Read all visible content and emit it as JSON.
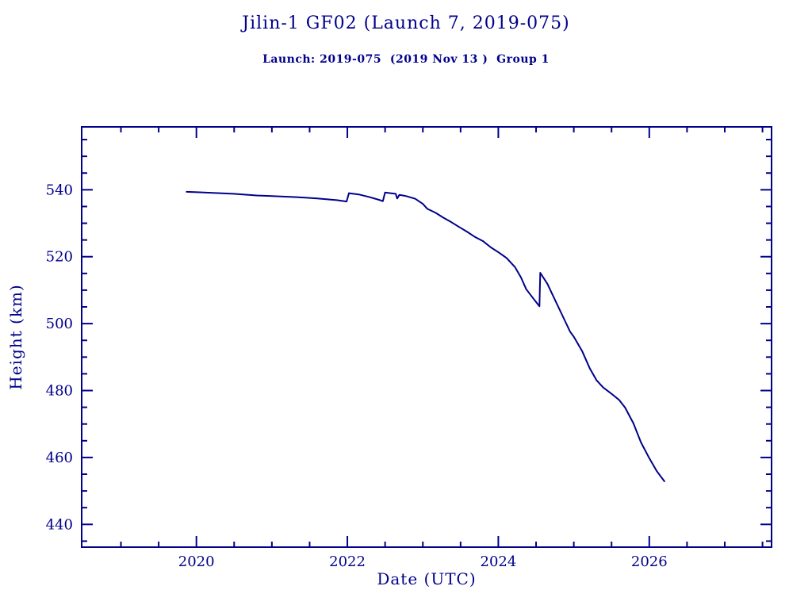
{
  "page": {
    "title": "Jilin-1 GF02 (Launch 7, 2019-075)",
    "subtitle": "Launch: 2019-075  (2019 Nov 13 )  Group 1"
  },
  "chart_data": {
    "type": "line",
    "title": "Jilin-1 GF02 (Launch 7, 2019-075)",
    "subtitle": "Launch: 2019-075  (2019 Nov 13 )  Group 1",
    "xlabel": "Date (UTC)",
    "ylabel": "Height (km)",
    "xlim": [
      2018.48,
      2027.62
    ],
    "ylim": [
      433.2,
      558.8
    ],
    "x_major_ticks": [
      2020,
      2022,
      2024,
      2026
    ],
    "x_major_tick_labels": [
      "2020",
      "2022",
      "2024",
      "2026"
    ],
    "x_minor_step": 0.5,
    "y_major_ticks": [
      440,
      460,
      480,
      500,
      520,
      540
    ],
    "y_major_tick_labels": [
      "440",
      "460",
      "480",
      "500",
      "520",
      "540"
    ],
    "y_minor_step": 5,
    "grid": false,
    "legend_position": "none",
    "ink_color": "#00008B",
    "line_color": "#00008B",
    "series": [
      {
        "name": "height-km-vs-date",
        "points": [
          [
            2019.87,
            539.4
          ],
          [
            2020.1,
            539.2
          ],
          [
            2020.49,
            538.8
          ],
          [
            2020.8,
            538.3
          ],
          [
            2021.0,
            538.1
          ],
          [
            2021.33,
            537.8
          ],
          [
            2021.6,
            537.4
          ],
          [
            2021.86,
            536.9
          ],
          [
            2021.99,
            536.5
          ],
          [
            2022.02,
            539.0
          ],
          [
            2022.15,
            538.6
          ],
          [
            2022.28,
            537.9
          ],
          [
            2022.42,
            537.0
          ],
          [
            2022.47,
            536.6
          ],
          [
            2022.5,
            539.2
          ],
          [
            2022.57,
            539.0
          ],
          [
            2022.64,
            538.8
          ],
          [
            2022.66,
            537.4
          ],
          [
            2022.69,
            538.5
          ],
          [
            2022.78,
            538.1
          ],
          [
            2022.9,
            537.3
          ],
          [
            2023.0,
            535.8
          ],
          [
            2023.06,
            534.3
          ],
          [
            2023.17,
            533.1
          ],
          [
            2023.27,
            531.7
          ],
          [
            2023.38,
            530.3
          ],
          [
            2023.48,
            528.9
          ],
          [
            2023.59,
            527.4
          ],
          [
            2023.69,
            525.9
          ],
          [
            2023.8,
            524.6
          ],
          [
            2023.9,
            522.8
          ],
          [
            2024.01,
            521.2
          ],
          [
            2024.11,
            519.6
          ],
          [
            2024.22,
            516.9
          ],
          [
            2024.3,
            513.8
          ],
          [
            2024.37,
            510.3
          ],
          [
            2024.45,
            507.9
          ],
          [
            2024.52,
            505.9
          ],
          [
            2024.545,
            505.2
          ],
          [
            2024.555,
            515.2
          ],
          [
            2024.65,
            511.9
          ],
          [
            2024.74,
            507.6
          ],
          [
            2024.85,
            502.4
          ],
          [
            2024.95,
            497.6
          ],
          [
            2025.0,
            496.1
          ],
          [
            2025.11,
            491.8
          ],
          [
            2025.21,
            486.7
          ],
          [
            2025.3,
            483.1
          ],
          [
            2025.39,
            480.9
          ],
          [
            2025.49,
            479.2
          ],
          [
            2025.6,
            477.2
          ],
          [
            2025.68,
            474.9
          ],
          [
            2025.79,
            470.2
          ],
          [
            2025.89,
            464.5
          ],
          [
            2026.0,
            459.8
          ],
          [
            2026.1,
            455.9
          ],
          [
            2026.2,
            452.9
          ]
        ]
      }
    ]
  }
}
